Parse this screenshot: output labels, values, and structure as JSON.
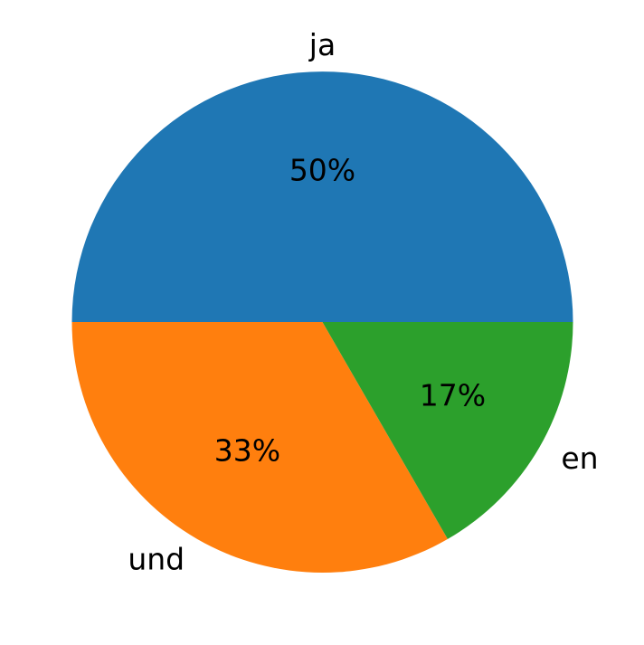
{
  "chart_data": {
    "type": "pie",
    "title": "",
    "categories": [
      "ja",
      "und",
      "en"
    ],
    "values": [
      50,
      33.33,
      16.67
    ],
    "percent_labels": [
      "50%",
      "33%",
      "17%"
    ],
    "colors": [
      "#1f77b4",
      "#ff7f0e",
      "#2ca02c"
    ],
    "start_angle_deg": 0,
    "direction": "counterclockwise",
    "legend": "none"
  }
}
